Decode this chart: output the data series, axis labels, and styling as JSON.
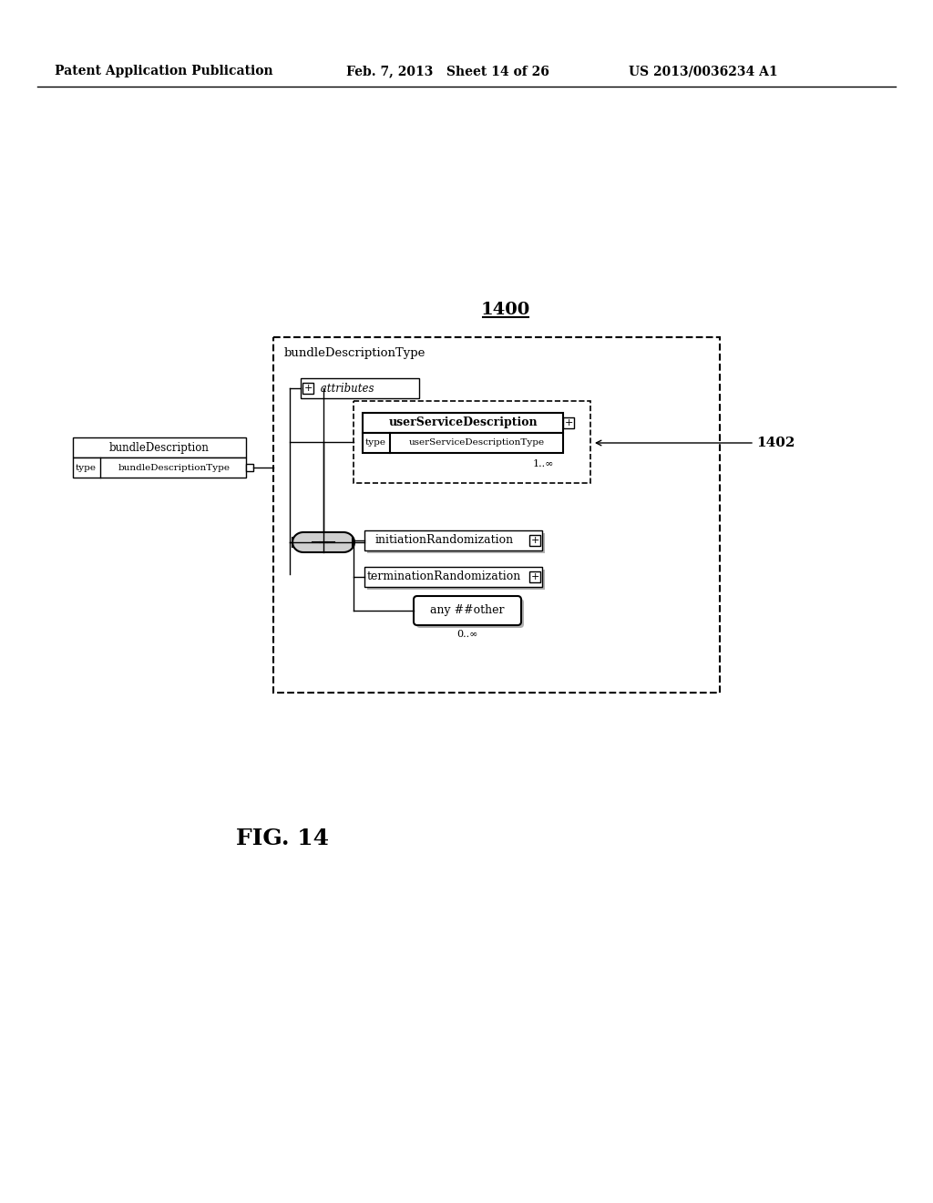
{
  "bg_color": "#ffffff",
  "header_left": "Patent Application Publication",
  "header_mid": "Feb. 7, 2013   Sheet 14 of 26",
  "header_right": "US 2013/0036234 A1",
  "figure_label": "FIG. 14",
  "diagram_label": "1400",
  "ref_label": "1402",
  "outer_box_label": "bundleDescriptionType",
  "left_box_top": "bundleDescription",
  "left_box_bot": "type | bundleDescriptionType",
  "attributes_label": "+ attributes",
  "usd_box_top": "userServiceDescription",
  "usd_box_bot": "type | userServiceDescriptionType",
  "usd_multiplicity": "1..∞",
  "initiation_label": "initiationRandomization",
  "termination_label": "terminationRandomization",
  "any_label": "any ##other",
  "any_multiplicity": "0..∞"
}
